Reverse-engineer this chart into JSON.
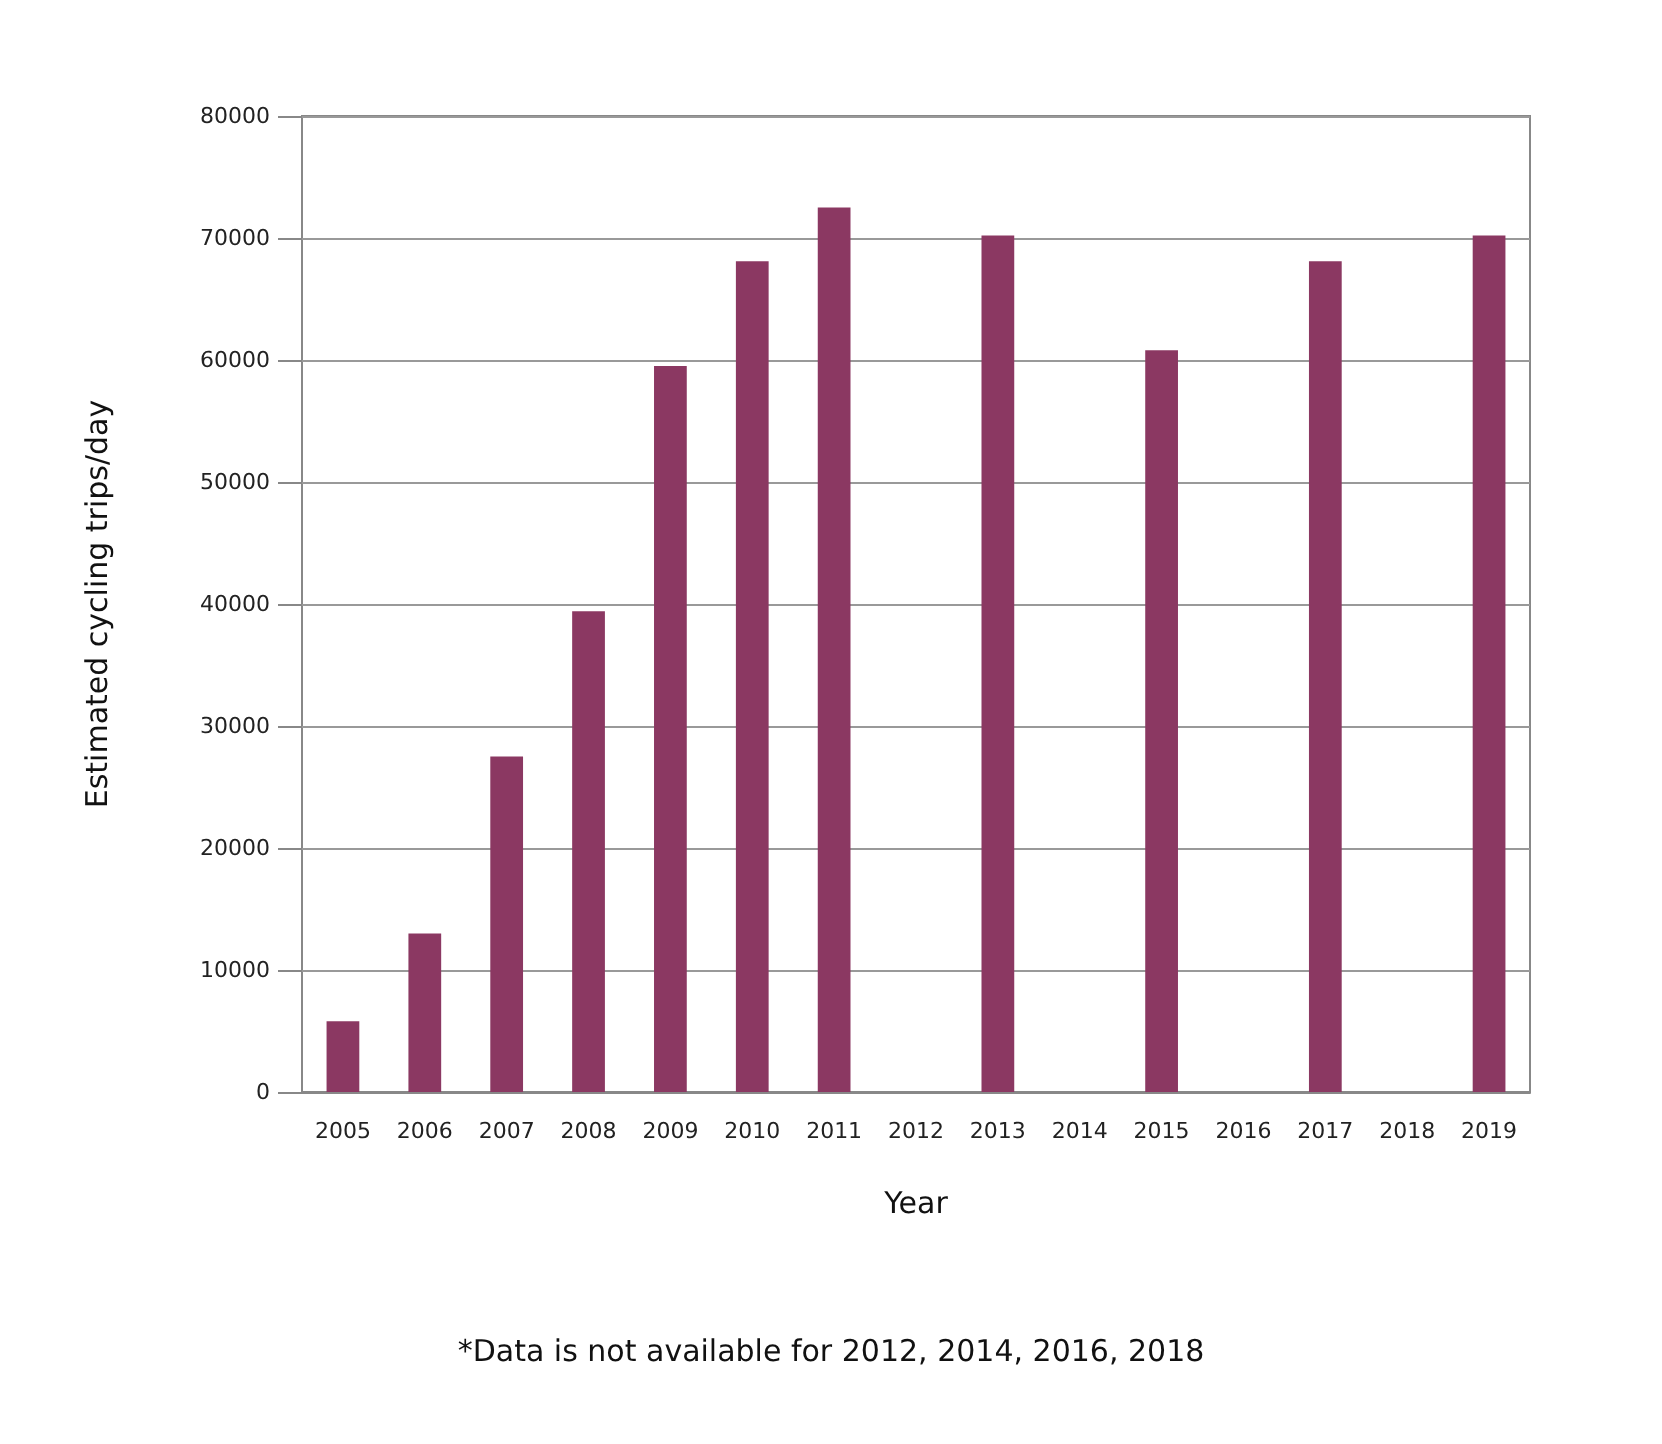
{
  "chart_data": {
    "type": "bar",
    "xlabel": "Year",
    "ylabel": "Estimated cycling trips/day",
    "categories": [
      "2005",
      "2006",
      "2007",
      "2008",
      "2009",
      "2010",
      "2011",
      "2012",
      "2013",
      "2014",
      "2015",
      "2016",
      "2017",
      "2018",
      "2019"
    ],
    "values": [
      5800,
      13000,
      27500,
      39400,
      59500,
      68100,
      72500,
      null,
      70200,
      null,
      60800,
      null,
      68100,
      null,
      70200
    ],
    "color": "#8b3862",
    "ylim": [
      0,
      80000
    ],
    "yticks": [
      0,
      10000,
      20000,
      30000,
      40000,
      50000,
      60000,
      70000,
      80000
    ],
    "grid": "y",
    "annotations": [
      "*Data is not available for 2012, 2014, 2016, 2018"
    ]
  }
}
